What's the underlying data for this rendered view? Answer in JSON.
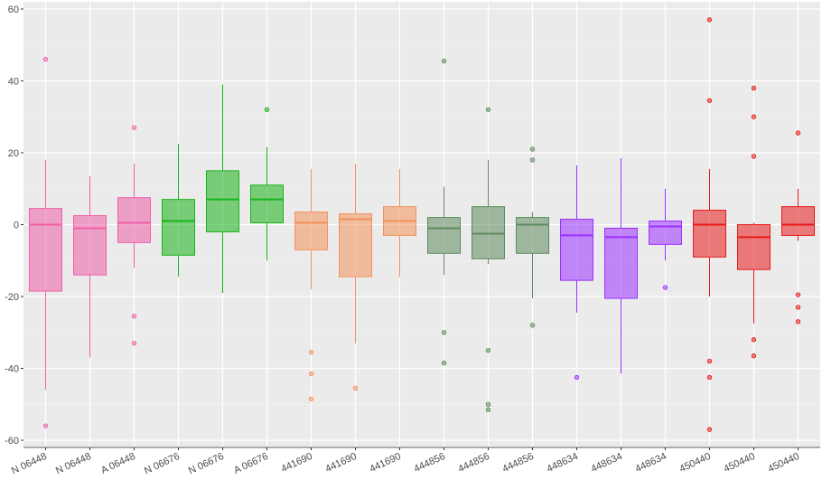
{
  "chart_data": {
    "type": "box",
    "title": "",
    "xlabel": "",
    "ylabel": "",
    "ylim": [
      -62,
      62
    ],
    "y_ticks": [
      60,
      40,
      20,
      0,
      -20,
      -40,
      -60
    ],
    "grid": true,
    "legend": "none",
    "categories": [
      "N 06448",
      "N 06448",
      "A 06448",
      "N 06676",
      "N 06676",
      "A 06676",
      "441690",
      "441690",
      "441690",
      "444856",
      "444856",
      "444856",
      "448634",
      "448634",
      "448634",
      "450440",
      "450440",
      "450440"
    ],
    "boxes": [
      {
        "min": -46,
        "q1": -18.5,
        "median": 0,
        "q3": 4.5,
        "max": 18,
        "outliers": [
          46,
          -56
        ],
        "color": "#ef5fa7"
      },
      {
        "min": -37,
        "q1": -14,
        "median": -1,
        "q3": 2.5,
        "max": 13.5,
        "outliers": [],
        "color": "#ef5fa7"
      },
      {
        "min": -12,
        "q1": -5,
        "median": 0.5,
        "q3": 7.5,
        "max": 17,
        "outliers": [
          27,
          -25.5,
          -33
        ],
        "color": "#ef5fa7"
      },
      {
        "min": -14.5,
        "q1": -8.5,
        "median": 1,
        "q3": 7,
        "max": 22.5,
        "outliers": [],
        "color": "#19b319"
      },
      {
        "min": -19,
        "q1": -2,
        "median": 7,
        "q3": 15,
        "max": 39,
        "outliers": [],
        "color": "#19b319"
      },
      {
        "min": -10,
        "q1": 0.5,
        "median": 7,
        "q3": 11,
        "max": 21.5,
        "outliers": [
          32
        ],
        "color": "#19b319"
      },
      {
        "min": -18,
        "q1": -7,
        "median": 0.5,
        "q3": 3.5,
        "max": 15.5,
        "outliers": [
          -35.5,
          -41.5,
          -48.5
        ],
        "color": "#f4915b"
      },
      {
        "min": -33,
        "q1": -14.5,
        "median": 1.5,
        "q3": 3,
        "max": 17,
        "outliers": [
          -45.5
        ],
        "color": "#f4915b"
      },
      {
        "min": -14.5,
        "q1": -3,
        "median": 1,
        "q3": 5,
        "max": 15.5,
        "outliers": [],
        "color": "#f4915b"
      },
      {
        "min": -14,
        "q1": -8,
        "median": -1,
        "q3": 2,
        "max": 10.5,
        "outliers": [
          45.5,
          -30,
          -38.5
        ],
        "color": "#5e8b5e"
      },
      {
        "min": -11,
        "q1": -9.5,
        "median": -2.5,
        "q3": 5,
        "max": 18,
        "outliers": [
          32,
          -35,
          -50,
          -51.5
        ],
        "color": "#5e8b5e"
      },
      {
        "min": -20.5,
        "q1": -8,
        "median": 0,
        "q3": 2,
        "max": 3.5,
        "outliers": [
          21,
          18,
          -28
        ],
        "color": "#5e8b5e"
      },
      {
        "min": -24.5,
        "q1": -15.5,
        "median": -3,
        "q3": 1.5,
        "max": 16.5,
        "outliers": [
          -42.5
        ],
        "color": "#9b30ff"
      },
      {
        "min": -41.5,
        "q1": -20.5,
        "median": -3.5,
        "q3": -1,
        "max": 18.5,
        "outliers": [],
        "color": "#9b30ff"
      },
      {
        "min": -10,
        "q1": -5.5,
        "median": -0.5,
        "q3": 1,
        "max": 10,
        "outliers": [
          -17.5
        ],
        "color": "#9b30ff"
      },
      {
        "min": -20,
        "q1": -9,
        "median": 0,
        "q3": 4,
        "max": 15.5,
        "outliers": [
          57,
          34.5,
          -38,
          -42.5,
          -57
        ],
        "color": "#e8191a"
      },
      {
        "min": -27.5,
        "q1": -12.5,
        "median": -3.5,
        "q3": 0,
        "max": 0.5,
        "outliers": [
          38,
          30,
          19,
          -32,
          -36.5
        ],
        "color": "#e8191a"
      },
      {
        "min": -4.5,
        "q1": -3,
        "median": 0,
        "q3": 5,
        "max": 10,
        "outliers": [
          25.5,
          -19.5,
          -23,
          -27
        ],
        "color": "#e8191a"
      }
    ]
  }
}
